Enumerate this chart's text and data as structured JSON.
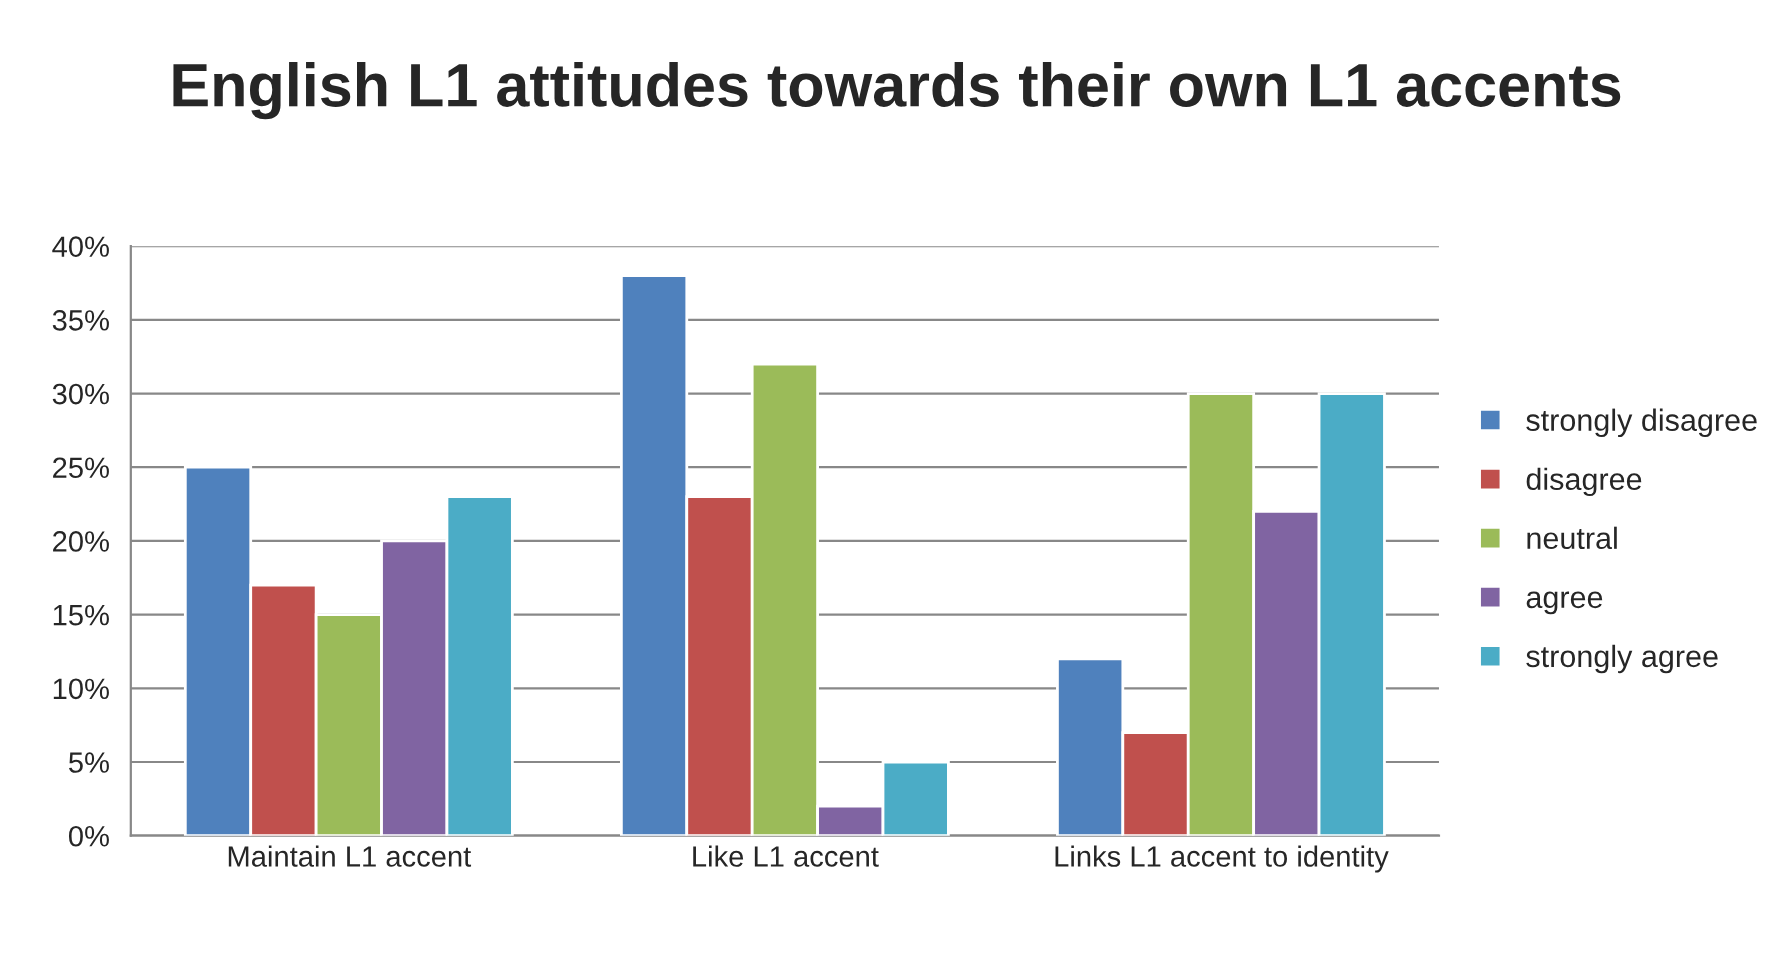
{
  "chart_data": {
    "type": "bar",
    "title": "English L1 attitudes towards their own L1 accents",
    "categories": [
      "Maintain L1 accent",
      "Like L1 accent",
      "Links L1 accent to identity"
    ],
    "series": [
      {
        "name": "strongly disagree",
        "color": "#4f81bd",
        "values": [
          25,
          38,
          12
        ]
      },
      {
        "name": "disagree",
        "color": "#c0504d",
        "values": [
          17,
          23,
          7
        ]
      },
      {
        "name": "neutral",
        "color": "#9bbb59",
        "values": [
          15,
          32,
          30
        ]
      },
      {
        "name": "agree",
        "color": "#8064a2",
        "values": [
          20,
          2,
          22
        ]
      },
      {
        "name": "strongly agree",
        "color": "#4bacc6",
        "values": [
          23,
          5,
          30
        ]
      }
    ],
    "ylim": [
      0,
      40
    ],
    "yticks": [
      {
        "value": 0,
        "label": "0%"
      },
      {
        "value": 5,
        "label": "5%"
      },
      {
        "value": 10,
        "label": "10%"
      },
      {
        "value": 15,
        "label": "15%"
      },
      {
        "value": 20,
        "label": "20%"
      },
      {
        "value": 25,
        "label": "25%"
      },
      {
        "value": 30,
        "label": "30%"
      },
      {
        "value": 35,
        "label": "35%"
      },
      {
        "value": 40,
        "label": "40%"
      }
    ],
    "grid": "y",
    "legend": "right"
  }
}
